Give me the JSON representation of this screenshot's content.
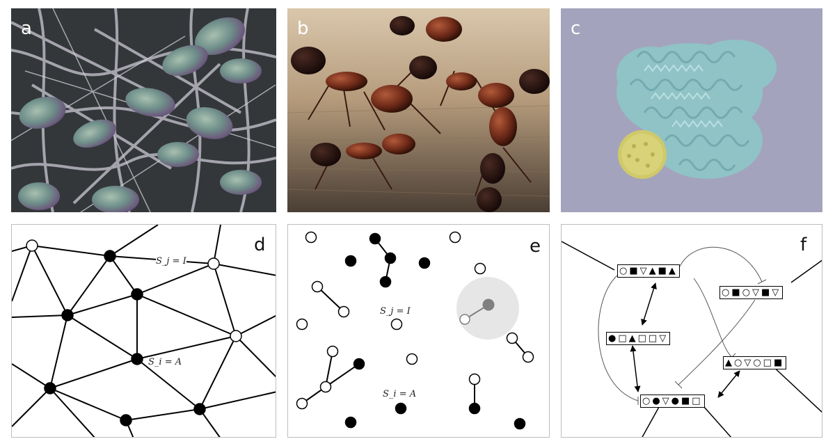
{
  "panels": {
    "a": {
      "label": "a",
      "subject": "neuron-cells-micrograph"
    },
    "b": {
      "label": "b",
      "subject": "ants-photo"
    },
    "c": {
      "label": "c",
      "subject": "immune-cell-micrograph"
    },
    "d": {
      "label": "d",
      "active_label": "S_i = A",
      "inactive_label": "S_j = I"
    },
    "e": {
      "label": "e",
      "active_label": "S_i = A",
      "inactive_label": "S_j = I"
    },
    "f": {
      "label": "f"
    }
  },
  "colors": {
    "active_node": "#000000",
    "inactive_node": "#ffffff",
    "highlight": "#e6e6e6",
    "highlight_node": "#808080"
  },
  "symbol_strings": {
    "f1": "○■▽▲■▲",
    "f2": "○■○▽■▽",
    "f3": "●□▲□□▽",
    "f4": "▲○▽○□■",
    "f5": "○●▽●■□"
  }
}
